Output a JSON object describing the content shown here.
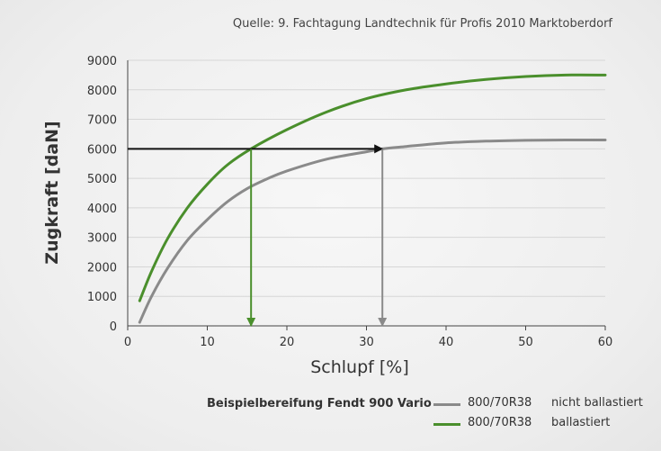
{
  "source": "Quelle: 9. Fachtagung Landtechnik für Profis 2010 Marktoberdorf",
  "colors": {
    "ballastiert": "#4a8f2c",
    "nicht_ballastiert": "#8a8a8a",
    "arrow_horizontal": "#111111",
    "grid": "#d6d6d6",
    "axis": "#444444"
  },
  "chart_data": {
    "type": "line",
    "xlabel": "Schlupf [%]",
    "ylabel": "Zugkraft [daN]",
    "xlim": [
      0,
      60
    ],
    "ylim": [
      0,
      9000
    ],
    "xticks": [
      "0",
      "10",
      "20",
      "30",
      "40",
      "50",
      "60"
    ],
    "yticks": [
      "0",
      "1000",
      "2000",
      "3000",
      "4000",
      "5000",
      "6000",
      "7000",
      "8000",
      "9000"
    ],
    "grid": "horizontal",
    "series": [
      {
        "name": "800/70R38 nicht ballastiert",
        "color": "#8a8a8a",
        "x": [
          1.5,
          3,
          5,
          7.5,
          10,
          12.5,
          15,
          17.5,
          20,
          25,
          30,
          32,
          35,
          40,
          45,
          50,
          55,
          60
        ],
        "y": [
          120,
          1000,
          1950,
          2900,
          3600,
          4200,
          4650,
          4980,
          5250,
          5650,
          5900,
          6000,
          6080,
          6200,
          6260,
          6290,
          6300,
          6300
        ]
      },
      {
        "name": "800/70R38 ballastiert",
        "color": "#4a8f2c",
        "x": [
          1.5,
          3,
          5,
          7.5,
          10,
          12.5,
          15.5,
          20,
          25,
          30,
          35,
          40,
          45,
          50,
          55,
          60
        ],
        "y": [
          850,
          1850,
          2950,
          4000,
          4800,
          5450,
          6000,
          6650,
          7250,
          7700,
          8000,
          8200,
          8350,
          8450,
          8500,
          8500
        ]
      }
    ],
    "annotations": [
      {
        "type": "arrow",
        "from": [
          0,
          6000
        ],
        "to": [
          32,
          6000
        ],
        "color": "#111111"
      },
      {
        "type": "arrow",
        "from": [
          15.5,
          6000
        ],
        "to": [
          15.5,
          0
        ],
        "color": "#4a8f2c"
      },
      {
        "type": "arrow",
        "from": [
          32,
          6000
        ],
        "to": [
          32,
          0
        ],
        "color": "#8a8a8a"
      }
    ]
  },
  "legend": {
    "caption": "Beispielbereifung Fendt 900 Vario",
    "items": [
      {
        "tire": "800/70R38",
        "state": "nicht ballastiert",
        "color": "#8a8a8a"
      },
      {
        "tire": "800/70R38",
        "state": "ballastiert",
        "color": "#4a8f2c"
      }
    ]
  }
}
